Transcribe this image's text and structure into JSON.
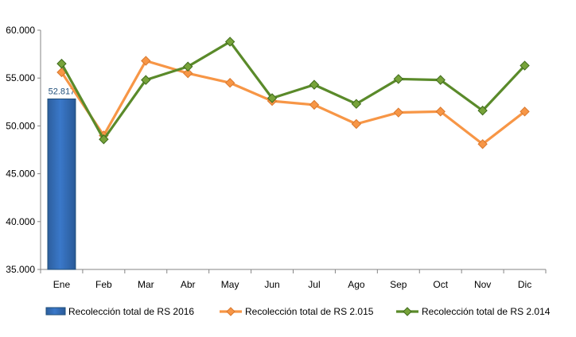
{
  "chart_data": {
    "type": "bar+line",
    "categories": [
      "Ene",
      "Feb",
      "Mar",
      "Abr",
      "May",
      "Jun",
      "Jul",
      "Ago",
      "Sep",
      "Oct",
      "Nov",
      "Dic"
    ],
    "ylim": [
      35000,
      60000
    ],
    "yticks": [
      35000,
      40000,
      45000,
      50000,
      55000,
      60000
    ],
    "ytick_labels": [
      "35.000",
      "40.000",
      "45.000",
      "50.000",
      "55.000",
      "60.000"
    ],
    "grid": false,
    "legend_position": "bottom",
    "bars": {
      "name": "Recolección total de RS 2016",
      "color": "#3a78c9",
      "values": [
        52817
      ],
      "data_labels": [
        "52.817"
      ]
    },
    "series": [
      {
        "name": "Recolección total de RS 2.015",
        "color": "#f79646",
        "values": [
          55600,
          49000,
          56800,
          55500,
          54500,
          52600,
          52200,
          50200,
          51400,
          51500,
          48100,
          51500
        ]
      },
      {
        "name": "Recolección total de RS 2.014",
        "color": "#5a8a2a",
        "marker_color": "#77a33a",
        "values": [
          56500,
          48600,
          54800,
          56200,
          58800,
          52900,
          54300,
          52300,
          54900,
          54800,
          51600,
          56300
        ]
      }
    ]
  }
}
